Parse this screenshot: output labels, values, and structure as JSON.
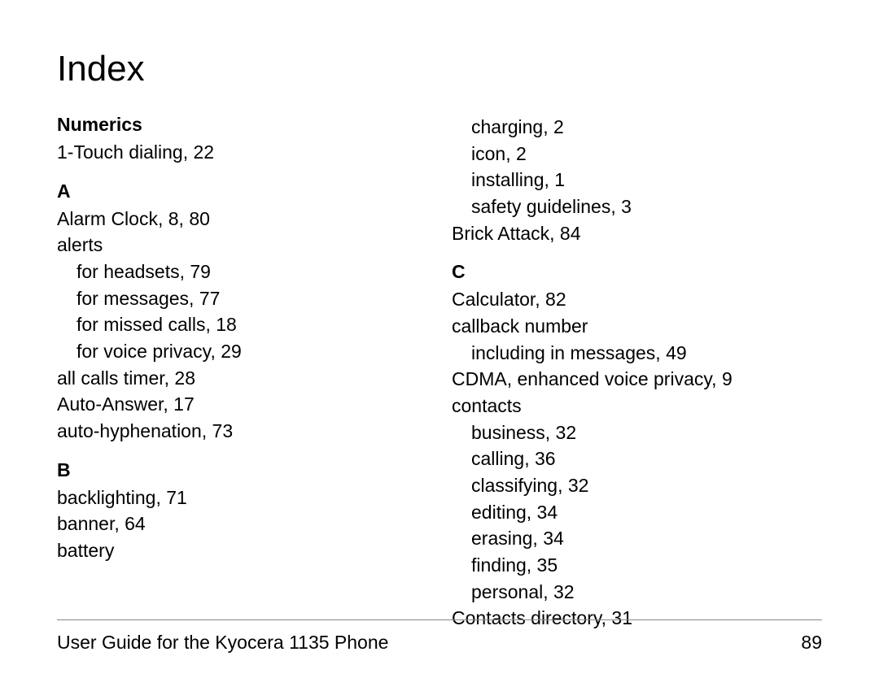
{
  "title": "Index",
  "footer": {
    "text": "User Guide for the Kyocera 1135 Phone",
    "page_number": "89"
  },
  "left_column": {
    "sections": [
      {
        "header": "Numerics",
        "entries": [
          {
            "text": "1-Touch dialing, 22",
            "indent": 0
          }
        ]
      },
      {
        "header": "A",
        "entries": [
          {
            "text": "Alarm Clock, 8, 80",
            "indent": 0
          },
          {
            "text": "alerts",
            "indent": 0
          },
          {
            "text": "for headsets, 79",
            "indent": 1
          },
          {
            "text": "for messages, 77",
            "indent": 1
          },
          {
            "text": "for missed calls, 18",
            "indent": 1
          },
          {
            "text": "for voice privacy, 29",
            "indent": 1
          },
          {
            "text": "all calls timer, 28",
            "indent": 0
          },
          {
            "text": "Auto-Answer, 17",
            "indent": 0
          },
          {
            "text": "auto-hyphenation, 73",
            "indent": 0
          }
        ]
      },
      {
        "header": "B",
        "entries": [
          {
            "text": "backlighting, 71",
            "indent": 0
          },
          {
            "text": "banner, 64",
            "indent": 0
          },
          {
            "text": "battery",
            "indent": 0
          }
        ]
      }
    ]
  },
  "right_column": {
    "sections": [
      {
        "header": null,
        "entries": [
          {
            "text": "charging, 2",
            "indent": 1
          },
          {
            "text": "icon, 2",
            "indent": 1
          },
          {
            "text": "installing, 1",
            "indent": 1
          },
          {
            "text": "safety guidelines, 3",
            "indent": 1
          },
          {
            "text": "Brick Attack, 84",
            "indent": 0
          }
        ]
      },
      {
        "header": "C",
        "entries": [
          {
            "text": "Calculator, 82",
            "indent": 0
          },
          {
            "text": "callback number",
            "indent": 0
          },
          {
            "text": "including in messages, 49",
            "indent": 1
          },
          {
            "text": "CDMA, enhanced voice privacy, 9",
            "indent": 0
          },
          {
            "text": "contacts",
            "indent": 0
          },
          {
            "text": "business, 32",
            "indent": 1
          },
          {
            "text": "calling, 36",
            "indent": 1
          },
          {
            "text": "classifying, 32",
            "indent": 1
          },
          {
            "text": "editing, 34",
            "indent": 1
          },
          {
            "text": "erasing, 34",
            "indent": 1
          },
          {
            "text": "finding, 35",
            "indent": 1
          },
          {
            "text": "personal, 32",
            "indent": 1
          },
          {
            "text": "Contacts directory, 31",
            "indent": 0
          }
        ]
      }
    ]
  }
}
